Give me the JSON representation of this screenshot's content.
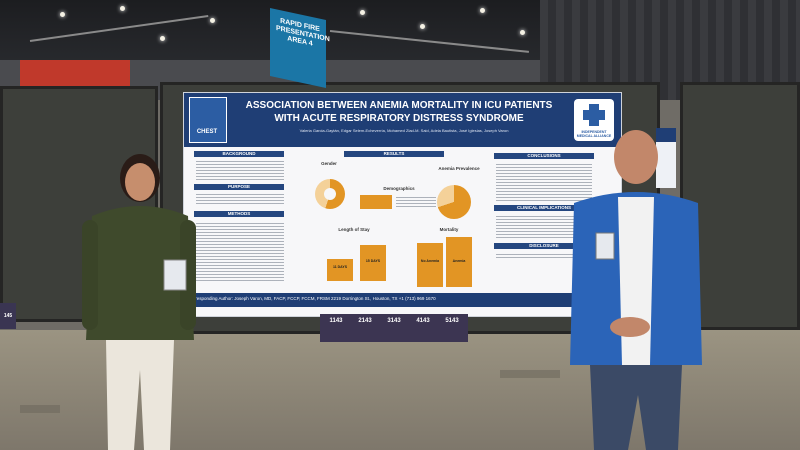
{
  "sign": {
    "text": "RAPID FIRE PRESENTATION AREA 4"
  },
  "poster": {
    "title": "ASSOCIATION BETWEEN ANEMIA MORTALITY IN ICU PATIENTS WITH ACUTE RESPIRATORY DISTRESS SYNDROME",
    "authors": "Valeria Garcia-Gaytán, Edgar Selem-Echeverría, Mohamed Ziad-M. Said, Adela Bautista, José Iglesias, Joseph Varon",
    "logo_left": "CHEST",
    "logo_right": "INDEPENDENT MEDICAL ALLIANCE",
    "sections": {
      "background": "BACKGROUND",
      "purpose": "PURPOSE",
      "methods": "METHODS",
      "results": "RESULTS",
      "conclusions": "CONCLUSIONS",
      "clinical": "CLINICAL IMPLICATIONS",
      "disclosure": "DISCLOSURE"
    },
    "charts": {
      "gender": "Gender",
      "demographics": "Demographics",
      "anemia": "Anemia Prevalence",
      "los": "Length of Stay",
      "mortality": "Mortality",
      "los_bar1": "11 DAYS",
      "los_bar2": "15 DAYS",
      "mort_bar1": "No Anemia",
      "mort_bar2": "Anemia"
    },
    "footer": "Corresponding Author: Joseph Varon, MD, FACP, FCCP, FCCM, FRSM    2219 Dorrington St., Houston, TX    +1 (713) 969 1670"
  },
  "stats": {
    "values": [
      "1143",
      "2143",
      "3143",
      "4143",
      "5143"
    ]
  },
  "left_sign": "145",
  "colors": {
    "poster_header": "#1f3e75",
    "accent": "#e29524",
    "sign": "#1b76a6"
  }
}
